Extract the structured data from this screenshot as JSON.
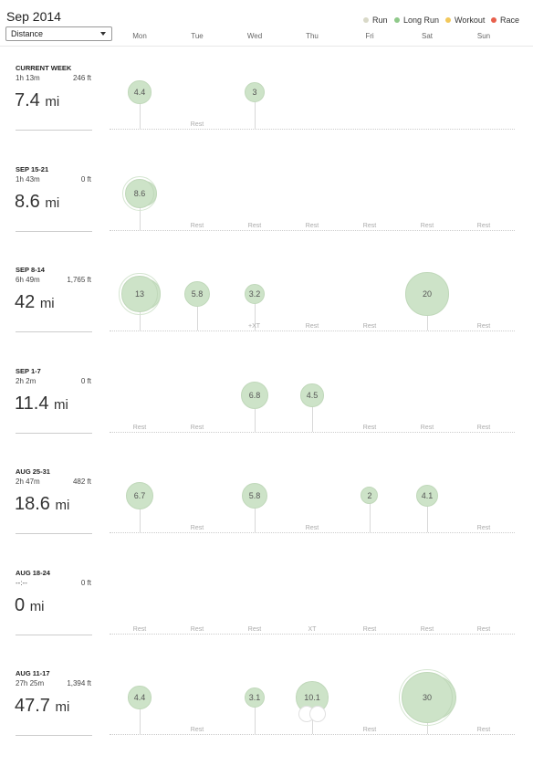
{
  "header": {
    "title": "Sep 2014",
    "metric_select": "Distance"
  },
  "legend": [
    {
      "label": "Run",
      "color": "#d9d9c8"
    },
    {
      "label": "Long Run",
      "color": "#8fc98a"
    },
    {
      "label": "Workout",
      "color": "#f2c85b"
    },
    {
      "label": "Race",
      "color": "#e8604c"
    }
  ],
  "days": [
    "Mon",
    "Tue",
    "Wed",
    "Thu",
    "Fri",
    "Sat",
    "Sun"
  ],
  "weeks": [
    {
      "label": "CURRENT WEEK",
      "time": "1h 13m",
      "elevation": "246 ft",
      "distance": "7.4",
      "unit": "mi",
      "runs": [
        {
          "day": 0,
          "value": "4.4",
          "miles": 4.4
        },
        {
          "day": 2,
          "value": "3",
          "miles": 3
        }
      ],
      "rest": [
        {
          "day": 1,
          "text": "Rest"
        }
      ]
    },
    {
      "label": "SEP 15-21",
      "time": "1h 43m",
      "elevation": "0 ft",
      "distance": "8.6",
      "unit": "mi",
      "runs": [
        {
          "day": 0,
          "value": "8.6",
          "miles": 8.6,
          "multi": true
        }
      ],
      "rest": [
        {
          "day": 1,
          "text": "Rest"
        },
        {
          "day": 2,
          "text": "Rest"
        },
        {
          "day": 3,
          "text": "Rest"
        },
        {
          "day": 4,
          "text": "Rest"
        },
        {
          "day": 5,
          "text": "Rest"
        },
        {
          "day": 6,
          "text": "Rest"
        }
      ]
    },
    {
      "label": "SEP 8-14",
      "time": "6h 49m",
      "elevation": "1,765 ft",
      "distance": "42",
      "unit": "mi",
      "runs": [
        {
          "day": 0,
          "value": "13",
          "miles": 13,
          "multi": true
        },
        {
          "day": 1,
          "value": "5.8",
          "miles": 5.8
        },
        {
          "day": 2,
          "value": "3.2",
          "miles": 3.2,
          "xt": "+XT"
        },
        {
          "day": 5,
          "value": "20",
          "miles": 20
        }
      ],
      "rest": [
        {
          "day": 3,
          "text": "Rest"
        },
        {
          "day": 4,
          "text": "Rest"
        },
        {
          "day": 6,
          "text": "Rest"
        }
      ]
    },
    {
      "label": "SEP 1-7",
      "time": "2h 2m",
      "elevation": "0 ft",
      "distance": "11.4",
      "unit": "mi",
      "runs": [
        {
          "day": 2,
          "value": "6.8",
          "miles": 6.8
        },
        {
          "day": 3,
          "value": "4.5",
          "miles": 4.5
        }
      ],
      "rest": [
        {
          "day": 0,
          "text": "Rest"
        },
        {
          "day": 1,
          "text": "Rest"
        },
        {
          "day": 4,
          "text": "Rest"
        },
        {
          "day": 5,
          "text": "Rest"
        },
        {
          "day": 6,
          "text": "Rest"
        }
      ]
    },
    {
      "label": "AUG 25-31",
      "time": "2h 47m",
      "elevation": "482 ft",
      "distance": "18.6",
      "unit": "mi",
      "runs": [
        {
          "day": 0,
          "value": "6.7",
          "miles": 6.7
        },
        {
          "day": 2,
          "value": "5.8",
          "miles": 5.8
        },
        {
          "day": 4,
          "value": "2",
          "miles": 2
        },
        {
          "day": 5,
          "value": "4.1",
          "miles": 4.1
        }
      ],
      "rest": [
        {
          "day": 1,
          "text": "Rest"
        },
        {
          "day": 3,
          "text": "Rest"
        },
        {
          "day": 6,
          "text": "Rest"
        }
      ]
    },
    {
      "label": "AUG 18-24",
      "time": "--:--",
      "elevation": "0 ft",
      "distance": "0",
      "unit": "mi",
      "runs": [],
      "rest": [
        {
          "day": 0,
          "text": "Rest"
        },
        {
          "day": 1,
          "text": "Rest"
        },
        {
          "day": 2,
          "text": "Rest"
        },
        {
          "day": 3,
          "text": "XT"
        },
        {
          "day": 4,
          "text": "Rest"
        },
        {
          "day": 5,
          "text": "Rest"
        },
        {
          "day": 6,
          "text": "Rest"
        }
      ]
    },
    {
      "label": "AUG 11-17",
      "time": "27h 25m",
      "elevation": "1,394 ft",
      "distance": "47.7",
      "unit": "mi",
      "runs": [
        {
          "day": 0,
          "value": "4.4",
          "miles": 4.4
        },
        {
          "day": 2,
          "value": "3.1",
          "miles": 3.1
        },
        {
          "day": 3,
          "value": "10.1",
          "miles": 10.1,
          "ghost": true
        },
        {
          "day": 5,
          "value": "30",
          "miles": 30,
          "multi": true
        }
      ],
      "rest": [
        {
          "day": 1,
          "text": "Rest"
        },
        {
          "day": 4,
          "text": "Rest"
        },
        {
          "day": 6,
          "text": "Rest"
        }
      ]
    }
  ]
}
